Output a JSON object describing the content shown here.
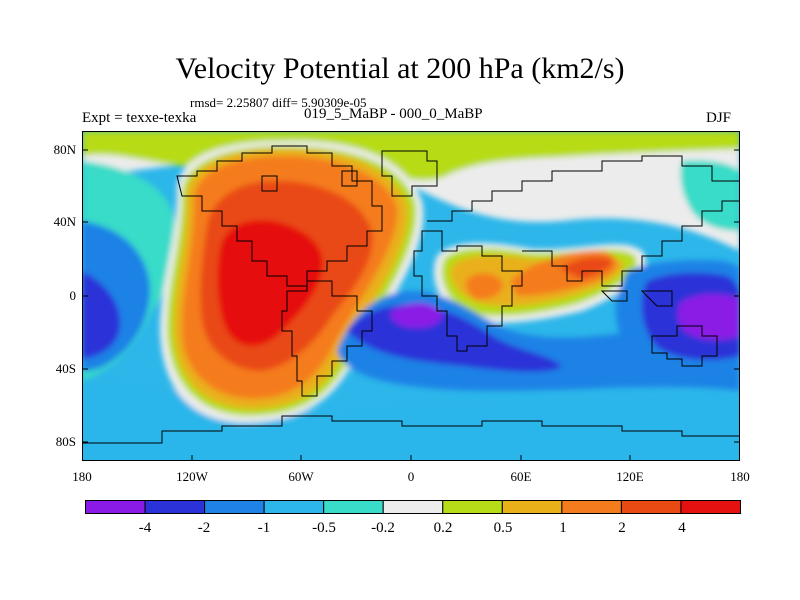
{
  "title": "Velocity Potential at 200 hPa (km2/s)",
  "stats": "rmsd= 2.25807  diff= 5.90309e-05",
  "experiment": "Expt = texxe-texka",
  "cases": "019_5_MaBP - 000_0_MaBP",
  "season": "DJF",
  "lat_labels": [
    "80N",
    "40N",
    "0",
    "40S",
    "80S"
  ],
  "lon_labels": [
    "180",
    "120W",
    "60W",
    "0",
    "60E",
    "120E",
    "180"
  ],
  "colorbar": {
    "colors": [
      "#8a1ae6",
      "#2a32d8",
      "#1e82e6",
      "#2cb6ea",
      "#38dcc8",
      "#ececec",
      "#b7dc18",
      "#e9b01a",
      "#f57c1c",
      "#e94a14",
      "#e51010"
    ],
    "labels": [
      "-4",
      "-2",
      "-1",
      "-0.5",
      "-0.2",
      "0.2",
      "0.5",
      "1",
      "2",
      "4"
    ]
  },
  "colors": {
    "ocean_cyan": "#2cb6ea",
    "bg": "#ffffff",
    "coast": "#000000"
  }
}
